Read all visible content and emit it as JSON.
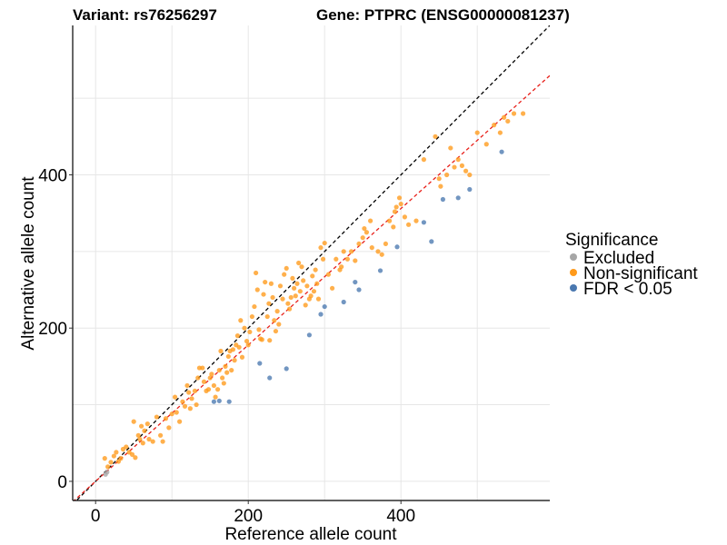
{
  "title_left": "Variant: rs76256297",
  "title_right": "Gene: PTPRC (ENSG00000081237)",
  "colors": {
    "excluded": "#a6a6a6",
    "non_significant": "#ff9a1a",
    "fdr": "#4a78b0",
    "identity_line": "#000000",
    "fit_line": "#e8201a",
    "grid": "#e6e6e6"
  },
  "chart_data": {
    "type": "scatter",
    "xlabel": "Reference allele count",
    "ylabel": "Alternative allele count",
    "xlim": [
      -30,
      595
    ],
    "ylim": [
      -25,
      595
    ],
    "x_ticks": [
      0,
      200,
      400
    ],
    "y_ticks": [
      0,
      200,
      400
    ],
    "grid": true,
    "legend_title": "Significance",
    "legend_position": "right",
    "reference_lines": [
      {
        "name": "identity",
        "slope": 1.0,
        "intercept": 0,
        "style": "dashed",
        "color": "#000000"
      },
      {
        "name": "fit",
        "slope": 0.89,
        "intercept": 0,
        "style": "dashed",
        "color": "#e8201a"
      }
    ],
    "series": [
      {
        "name": "Excluded",
        "color": "#a6a6a6",
        "points": [
          [
            13,
            9
          ],
          [
            15,
            12
          ]
        ]
      },
      {
        "name": "Non-significant",
        "color": "#ff9a1a",
        "points": [
          [
            12,
            30
          ],
          [
            16,
            19
          ],
          [
            20,
            25
          ],
          [
            24,
            33
          ],
          [
            27,
            38
          ],
          [
            30,
            26
          ],
          [
            33,
            30
          ],
          [
            36,
            42
          ],
          [
            40,
            45
          ],
          [
            44,
            38
          ],
          [
            48,
            35
          ],
          [
            50,
            78
          ],
          [
            52,
            31
          ],
          [
            56,
            60
          ],
          [
            58,
            55
          ],
          [
            60,
            72
          ],
          [
            62,
            50
          ],
          [
            64,
            66
          ],
          [
            68,
            75
          ],
          [
            70,
            55
          ],
          [
            75,
            52
          ],
          [
            80,
            84
          ],
          [
            85,
            60
          ],
          [
            88,
            52
          ],
          [
            92,
            82
          ],
          [
            96,
            70
          ],
          [
            100,
            88
          ],
          [
            104,
            110
          ],
          [
            106,
            90
          ],
          [
            110,
            78
          ],
          [
            114,
            104
          ],
          [
            117,
            98
          ],
          [
            120,
            125
          ],
          [
            122,
            116
          ],
          [
            124,
            95
          ],
          [
            126,
            108
          ],
          [
            130,
            118
          ],
          [
            132,
            100
          ],
          [
            134,
            135
          ],
          [
            136,
            148
          ],
          [
            140,
            148
          ],
          [
            142,
            130
          ],
          [
            145,
            118
          ],
          [
            148,
            120
          ],
          [
            150,
            135
          ],
          [
            152,
            140
          ],
          [
            155,
            125
          ],
          [
            157,
            110
          ],
          [
            160,
            120
          ],
          [
            162,
            145
          ],
          [
            164,
            170
          ],
          [
            166,
            135
          ],
          [
            168,
            128
          ],
          [
            170,
            150
          ],
          [
            172,
            142
          ],
          [
            174,
            163
          ],
          [
            176,
            170
          ],
          [
            178,
            145
          ],
          [
            180,
            172
          ],
          [
            182,
            158
          ],
          [
            184,
            178
          ],
          [
            186,
            190
          ],
          [
            188,
            175
          ],
          [
            190,
            210
          ],
          [
            192,
            162
          ],
          [
            195,
            200
          ],
          [
            198,
            183
          ],
          [
            200,
            178
          ],
          [
            202,
            195
          ],
          [
            205,
            215
          ],
          [
            208,
            228
          ],
          [
            210,
            272
          ],
          [
            212,
            250
          ],
          [
            214,
            198
          ],
          [
            216,
            186
          ],
          [
            218,
            185
          ],
          [
            220,
            244
          ],
          [
            222,
            260
          ],
          [
            225,
            215
          ],
          [
            227,
            232
          ],
          [
            228,
            184
          ],
          [
            230,
            258
          ],
          [
            232,
            240
          ],
          [
            234,
            210
          ],
          [
            236,
            196
          ],
          [
            238,
            222
          ],
          [
            240,
            205
          ],
          [
            242,
            255
          ],
          [
            245,
            238
          ],
          [
            247,
            270
          ],
          [
            250,
            278
          ],
          [
            252,
            232
          ],
          [
            254,
            225
          ],
          [
            256,
            240
          ],
          [
            258,
            265
          ],
          [
            260,
            252
          ],
          [
            262,
            242
          ],
          [
            264,
            258
          ],
          [
            266,
            285
          ],
          [
            268,
            248
          ],
          [
            270,
            280
          ],
          [
            272,
            262
          ],
          [
            275,
            230
          ],
          [
            277,
            255
          ],
          [
            280,
            238
          ],
          [
            282,
            242
          ],
          [
            284,
            268
          ],
          [
            286,
            248
          ],
          [
            288,
            276
          ],
          [
            290,
            258
          ],
          [
            292,
            238
          ],
          [
            295,
            305
          ],
          [
            298,
            290
          ],
          [
            300,
            311
          ],
          [
            305,
            270
          ],
          [
            310,
            252
          ],
          [
            315,
            290
          ],
          [
            320,
            276
          ],
          [
            322,
            280
          ],
          [
            325,
            300
          ],
          [
            330,
            290
          ],
          [
            335,
            300
          ],
          [
            340,
            288
          ],
          [
            345,
            310
          ],
          [
            350,
            318
          ],
          [
            352,
            330
          ],
          [
            355,
            325
          ],
          [
            360,
            340
          ],
          [
            362,
            305
          ],
          [
            370,
            300
          ],
          [
            375,
            296
          ],
          [
            380,
            310
          ],
          [
            385,
            340
          ],
          [
            390,
            332
          ],
          [
            392,
            352
          ],
          [
            394,
            358
          ],
          [
            398,
            370
          ],
          [
            400,
            362
          ],
          [
            405,
            345
          ],
          [
            410,
            335
          ],
          [
            420,
            340
          ],
          [
            430,
            420
          ],
          [
            445,
            450
          ],
          [
            450,
            395
          ],
          [
            452,
            385
          ],
          [
            460,
            400
          ],
          [
            465,
            435
          ],
          [
            470,
            410
          ],
          [
            475,
            420
          ],
          [
            480,
            412
          ],
          [
            485,
            405
          ],
          [
            490,
            400
          ],
          [
            500,
            455
          ],
          [
            512,
            440
          ],
          [
            522,
            465
          ],
          [
            530,
            455
          ],
          [
            535,
            475
          ],
          [
            540,
            470
          ],
          [
            548,
            480
          ],
          [
            560,
            480
          ]
        ]
      },
      {
        "name": "FDR < 0.05",
        "color": "#4a78b0",
        "points": [
          [
            155,
            104
          ],
          [
            162,
            105
          ],
          [
            175,
            104
          ],
          [
            215,
            154
          ],
          [
            228,
            135
          ],
          [
            250,
            147
          ],
          [
            280,
            191
          ],
          [
            295,
            218
          ],
          [
            300,
            228
          ],
          [
            325,
            234
          ],
          [
            340,
            260
          ],
          [
            345,
            250
          ],
          [
            373,
            275
          ],
          [
            395,
            306
          ],
          [
            430,
            338
          ],
          [
            440,
            313
          ],
          [
            455,
            368
          ],
          [
            475,
            370
          ],
          [
            490,
            381
          ],
          [
            532,
            430
          ]
        ]
      }
    ]
  }
}
